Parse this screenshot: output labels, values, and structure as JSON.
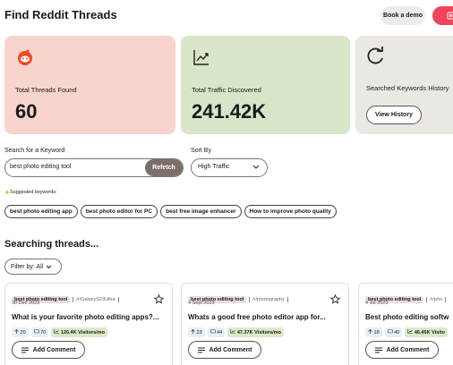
{
  "header": {
    "title": "Find Reddit Threads",
    "book_demo": "Book a demo"
  },
  "stats": [
    {
      "label": "Total Threads Found",
      "value": "60"
    },
    {
      "label": "Total Traffic Discovered",
      "value": "241.42K"
    },
    {
      "label": "Searched Keywords History",
      "button": "View History"
    }
  ],
  "search": {
    "label": "Search for a Keyword",
    "query": "best photo editing tool",
    "button": "Refetch",
    "sort_label": "Sort By",
    "sort_value": "High Traffic"
  },
  "suggested": {
    "label": "Suggested keywords:",
    "keywords": [
      "best photo editing app",
      "best photo editor for PC",
      "best free image enhancer",
      "How to improve photo quality"
    ]
  },
  "threads": {
    "title": "Searching threads...",
    "filter": "Filter by: All",
    "items": [
      {
        "keyword": "best photo editing tool",
        "subreddit": "/r/GalaxyS23Ultra",
        "date": "30 Dec 2023",
        "title": "What is your favorite photo editing apps?...",
        "upvotes": 20,
        "comments": 70,
        "visitors": "126.4K Visitors/mo",
        "action": "Add Comment"
      },
      {
        "keyword": "best photo editing tool",
        "subreddit": "/r/photography",
        "date": "4 Sept 2023",
        "title": "Whats a good free photo editor app for...",
        "upvotes": 23,
        "comments": 44,
        "visitors": "47.37K Visitors/mo",
        "action": "Add Comment"
      },
      {
        "keyword": "best photo editing tool",
        "subreddit": "/r/pho",
        "date": "4 Jul 2023",
        "title": "Best photo editing softw",
        "upvotes": 18,
        "comments": 40,
        "visitors": "46.45K Visito",
        "action": "Add Comment"
      }
    ]
  }
}
